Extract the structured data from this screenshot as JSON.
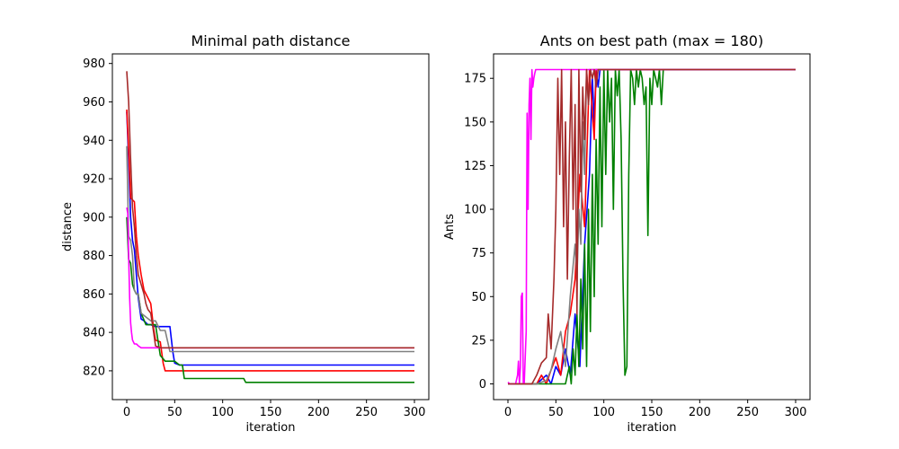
{
  "chart_data": [
    {
      "type": "line",
      "title": "Minimal path distance",
      "xlabel": "iteration",
      "ylabel": "distance",
      "xlim": [
        -15,
        315
      ],
      "ylim": [
        805,
        985
      ],
      "xticks": [
        0,
        50,
        100,
        150,
        200,
        250,
        300
      ],
      "yticks": [
        820,
        840,
        860,
        880,
        900,
        920,
        940,
        960,
        980
      ],
      "grid": false,
      "series": [
        {
          "color": "#0000ff",
          "x": [
            0,
            2,
            4,
            6,
            8,
            10,
            12,
            15,
            18,
            22,
            25,
            30,
            35,
            40,
            45,
            48,
            50,
            55,
            60,
            300
          ],
          "y": [
            955,
            930,
            900,
            888,
            883,
            870,
            858,
            847,
            846,
            844,
            844,
            843,
            843,
            843,
            843,
            830,
            824,
            823,
            823,
            823
          ]
        },
        {
          "color": "#ff0000",
          "x": [
            0,
            2,
            4,
            6,
            8,
            10,
            12,
            15,
            18,
            22,
            25,
            28,
            30,
            35,
            38,
            40,
            45,
            50,
            300
          ],
          "y": [
            956,
            935,
            910,
            909,
            908,
            890,
            880,
            870,
            862,
            858,
            855,
            842,
            836,
            835,
            824,
            820,
            820,
            820,
            820
          ]
        },
        {
          "color": "#008000",
          "x": [
            0,
            2,
            4,
            6,
            8,
            10,
            12,
            15,
            20,
            25,
            30,
            35,
            40,
            45,
            50,
            55,
            58,
            60,
            100,
            122,
            124,
            300
          ],
          "y": [
            900,
            878,
            876,
            865,
            862,
            860,
            860,
            850,
            844,
            844,
            844,
            828,
            825,
            825,
            825,
            823,
            823,
            816,
            816,
            816,
            814,
            814
          ]
        },
        {
          "color": "#808080",
          "x": [
            0,
            2,
            4,
            6,
            8,
            10,
            12,
            15,
            20,
            25,
            30,
            35,
            40,
            45,
            47,
            50,
            300
          ],
          "y": [
            937,
            890,
            888,
            880,
            862,
            860,
            860,
            850,
            848,
            846,
            846,
            841,
            841,
            830,
            830,
            830,
            830
          ]
        },
        {
          "color": "#ff00ff",
          "x": [
            0,
            1,
            2,
            3,
            4,
            5,
            6,
            8,
            10,
            12,
            15,
            20,
            25,
            300
          ],
          "y": [
            905,
            902,
            880,
            858,
            845,
            840,
            836,
            834,
            834,
            833,
            832,
            832,
            832,
            832
          ]
        },
        {
          "color": "#a52a2a",
          "x": [
            0,
            2,
            4,
            6,
            8,
            10,
            12,
            15,
            18,
            20,
            22,
            25,
            28,
            30,
            35,
            300
          ],
          "y": [
            976,
            960,
            930,
            905,
            895,
            880,
            870,
            865,
            860,
            855,
            852,
            850,
            840,
            833,
            832,
            832
          ]
        }
      ]
    },
    {
      "type": "line",
      "title": "Ants on best path (max = 180)",
      "xlabel": "iteration",
      "ylabel": "Ants",
      "xlim": [
        -15,
        315
      ],
      "ylim": [
        -9,
        189
      ],
      "xticks": [
        0,
        50,
        100,
        150,
        200,
        250,
        300
      ],
      "yticks": [
        0,
        25,
        50,
        75,
        100,
        125,
        150,
        175
      ],
      "grid": false,
      "series": [
        {
          "color": "#0000ff",
          "x": [
            0,
            10,
            20,
            30,
            40,
            45,
            50,
            55,
            60,
            65,
            70,
            75,
            80,
            85,
            88,
            90,
            92,
            94,
            96,
            300
          ],
          "y": [
            0,
            0,
            0,
            0,
            5,
            0,
            10,
            5,
            20,
            5,
            40,
            10,
            80,
            120,
            175,
            150,
            180,
            170,
            180,
            180
          ]
        },
        {
          "color": "#ff0000",
          "x": [
            0,
            10,
            20,
            30,
            35,
            40,
            45,
            50,
            55,
            60,
            65,
            70,
            75,
            80,
            85,
            90,
            92,
            95,
            300
          ],
          "y": [
            0,
            0,
            0,
            0,
            5,
            0,
            8,
            15,
            5,
            30,
            40,
            60,
            120,
            90,
            180,
            140,
            180,
            180,
            180
          ]
        },
        {
          "color": "#008000",
          "x": [
            0,
            10,
            20,
            30,
            40,
            50,
            55,
            60,
            62,
            64,
            66,
            68,
            70,
            72,
            74,
            76,
            78,
            80,
            82,
            84,
            86,
            88,
            90,
            92,
            94,
            96,
            98,
            100,
            102,
            104,
            106,
            108,
            110,
            112,
            114,
            116,
            118,
            120,
            122,
            124,
            126,
            128,
            130,
            132,
            134,
            136,
            138,
            140,
            142,
            144,
            146,
            148,
            150,
            152,
            154,
            156,
            158,
            160,
            162,
            164,
            300
          ],
          "y": [
            0,
            0,
            0,
            0,
            0,
            0,
            0,
            0,
            5,
            10,
            0,
            20,
            5,
            40,
            10,
            60,
            20,
            80,
            10,
            100,
            30,
            120,
            50,
            140,
            80,
            170,
            90,
            180,
            120,
            180,
            150,
            175,
            100,
            180,
            165,
            180,
            140,
            60,
            5,
            10,
            120,
            180,
            175,
            160,
            180,
            170,
            180,
            175,
            160,
            170,
            85,
            175,
            160,
            180,
            175,
            170,
            180,
            160,
            180,
            180,
            180
          ]
        },
        {
          "color": "#808080",
          "x": [
            0,
            10,
            20,
            30,
            40,
            45,
            50,
            55,
            60,
            65,
            70,
            72,
            74,
            76,
            78,
            80,
            82,
            84,
            86,
            300
          ],
          "y": [
            0,
            0,
            0,
            0,
            2,
            8,
            20,
            30,
            10,
            50,
            80,
            60,
            100,
            80,
            150,
            120,
            180,
            160,
            180,
            180
          ]
        },
        {
          "color": "#ff00ff",
          "x": [
            0,
            2,
            4,
            6,
            8,
            10,
            11,
            12,
            13,
            14,
            15,
            16,
            17,
            18,
            19,
            20,
            21,
            22,
            23,
            24,
            25,
            26,
            27,
            28,
            29,
            30,
            35,
            300
          ],
          "y": [
            1,
            0,
            0,
            0,
            0,
            5,
            13,
            0,
            10,
            50,
            52,
            0,
            0,
            15,
            30,
            155,
            100,
            160,
            175,
            140,
            180,
            170,
            175,
            178,
            180,
            180,
            180,
            180
          ]
        },
        {
          "color": "#a52a2a",
          "x": [
            0,
            5,
            10,
            15,
            20,
            25,
            30,
            35,
            40,
            42,
            45,
            48,
            50,
            52,
            54,
            56,
            58,
            60,
            62,
            64,
            66,
            68,
            70,
            72,
            74,
            76,
            78,
            80,
            82,
            84,
            86,
            88,
            90,
            92,
            94,
            96,
            98,
            100,
            300
          ],
          "y": [
            0,
            0,
            0,
            0,
            0,
            0,
            5,
            12,
            15,
            40,
            20,
            60,
            100,
            175,
            120,
            180,
            90,
            150,
            60,
            130,
            180,
            100,
            160,
            40,
            180,
            110,
            170,
            140,
            180,
            160,
            180,
            175,
            180,
            170,
            180,
            180,
            180,
            180,
            180
          ]
        }
      ]
    }
  ]
}
